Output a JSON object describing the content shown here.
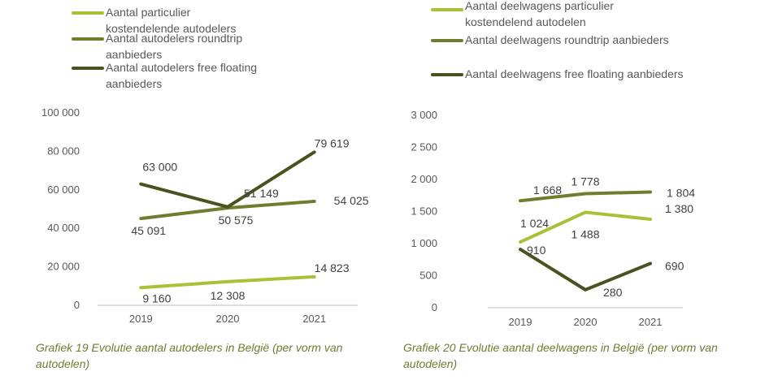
{
  "chart_data": [
    {
      "type": "line",
      "categories": [
        "2019",
        "2020",
        "2021"
      ],
      "ylim": [
        0,
        100000
      ],
      "yticks": [
        "100 000",
        "80 000",
        "60 000",
        "40 000",
        "20 000",
        "0"
      ],
      "ytick_values": [
        100000,
        80000,
        60000,
        40000,
        20000,
        0
      ],
      "legend_position": "top-left",
      "series": [
        {
          "name": "Aantal particulier kostendelende autodelers",
          "legend_lines": [
            "Aantal particulier",
            "kostendelende autodelers"
          ],
          "color": "#a8c136",
          "values": [
            9160,
            12308,
            14823
          ],
          "labels": [
            "9 160",
            "12 308",
            "14 823"
          ]
        },
        {
          "name": "Aantal autodelers roundtrip aanbieders",
          "legend_lines": [
            "Aantal autodelers roundtrip",
            "aanbieders"
          ],
          "color": "#6f7d2e",
          "values": [
            45091,
            50575,
            54025
          ],
          "labels": [
            "45 091",
            "50 575",
            "54 025"
          ]
        },
        {
          "name": "Aantal autodelers free floating aanbieders",
          "legend_lines": [
            "Aantal autodelers free floating",
            "aanbieders"
          ],
          "color": "#4b5220",
          "values": [
            63000,
            51149,
            79619
          ],
          "labels": [
            "63 000",
            "51 149",
            "79 619"
          ]
        }
      ],
      "caption": "Grafiek 19 Evolutie aantal autodelers in België (per vorm van autodelen)"
    },
    {
      "type": "line",
      "categories": [
        "2019",
        "2020",
        "2021"
      ],
      "ylim": [
        0,
        3000
      ],
      "yticks": [
        "3 000",
        "2 500",
        "2 000",
        "1 500",
        "1 000",
        "500",
        "0"
      ],
      "ytick_values": [
        3000,
        2500,
        2000,
        1500,
        1000,
        500,
        0
      ],
      "legend_position": "top-left",
      "series": [
        {
          "name": "Aantal deelwagens particulier kostendelend autodelen",
          "legend_lines": [
            "Aantal deelwagens particulier",
            "kostendelend autodelen"
          ],
          "color": "#a8c136",
          "values": [
            1024,
            1488,
            1380
          ],
          "labels": [
            "1 024",
            "1 488",
            "1 380"
          ]
        },
        {
          "name": "Aantal deelwagens roundtrip aanbieders",
          "legend_lines": [
            "Aantal deelwagens roundtrip aanbieders"
          ],
          "color": "#6f7d2e",
          "values": [
            1668,
            1778,
            1804
          ],
          "labels": [
            "1 668",
            "1 778",
            "1 804"
          ]
        },
        {
          "name": "Aantal deelwagens free floating aanbieders",
          "legend_lines": [
            "Aantal deelwagens free floating aanbieders"
          ],
          "color": "#4b5220",
          "values": [
            910,
            280,
            690
          ],
          "labels": [
            "910",
            "280",
            "690"
          ]
        }
      ],
      "caption": "Grafiek 20 Evolutie aantal deelwagens in België (per vorm van autodelen)"
    }
  ]
}
